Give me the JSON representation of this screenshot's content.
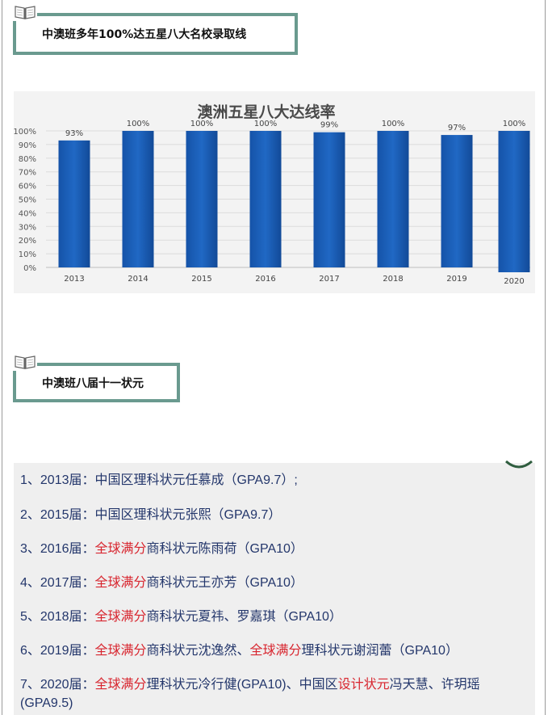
{
  "section1": {
    "title": "中澳班多年100%达五星八大名校录取线"
  },
  "chart_data": {
    "type": "bar",
    "title": "澳洲五星八大达线率",
    "categories": [
      "2013",
      "2014",
      "2015",
      "2016",
      "2017",
      "2018",
      "2019",
      "2020"
    ],
    "values": [
      93,
      100,
      100,
      100,
      99,
      100,
      97,
      100
    ],
    "value_labels": [
      "93%",
      "100%",
      "100%",
      "100%",
      "99%",
      "100%",
      "97%",
      "100%"
    ],
    "y_ticks": [
      "0%",
      "10%",
      "20%",
      "30%",
      "40%",
      "50%",
      "60%",
      "70%",
      "80%",
      "90%",
      "100%"
    ],
    "ylim": [
      0,
      100
    ],
    "grid": true,
    "bar_color": "#1a5fb4"
  },
  "section2": {
    "title": "中澳班八届十一状元"
  },
  "list": [
    {
      "segments": [
        {
          "text": "1、2013届：中国区理科状元任慕成（GPA9.7）;",
          "hl": false
        }
      ]
    },
    {
      "segments": [
        {
          "text": "2、2015届：中国区理科状元张熙（GPA9.7）",
          "hl": false
        }
      ]
    },
    {
      "segments": [
        {
          "text": "3、2016届：",
          "hl": false
        },
        {
          "text": "全球满分",
          "hl": true
        },
        {
          "text": "商科状元陈雨荷（GPA10）",
          "hl": false
        }
      ]
    },
    {
      "segments": [
        {
          "text": "4、2017届：",
          "hl": false
        },
        {
          "text": "全球满分",
          "hl": true
        },
        {
          "text": "商科状元王亦芳（GPA10）",
          "hl": false
        }
      ]
    },
    {
      "segments": [
        {
          "text": "5、2018届：",
          "hl": false
        },
        {
          "text": "全球满分",
          "hl": true
        },
        {
          "text": "商科状元夏祎、罗嘉琪（GPA10）",
          "hl": false
        }
      ]
    },
    {
      "segments": [
        {
          "text": "6、2019届：",
          "hl": false
        },
        {
          "text": "全球满分",
          "hl": true
        },
        {
          "text": "商科状元沈逸然、",
          "hl": false
        },
        {
          "text": "全球满分",
          "hl": true
        },
        {
          "text": "理科状元谢润蕾（GPA10）",
          "hl": false
        }
      ]
    },
    {
      "segments": [
        {
          "text": "7、2020届：",
          "hl": false
        },
        {
          "text": "全球满分",
          "hl": true
        },
        {
          "text": "理科状元冷行健(GPA10)、中国区",
          "hl": false
        },
        {
          "text": "设计状元",
          "hl": true
        },
        {
          "text": "冯天慧、许玥瑶 (GPA9.5)",
          "hl": false
        }
      ]
    }
  ],
  "colors": {
    "accent_border": "#6a9a8f",
    "highlight": "#d8262f",
    "list_text": "#23366b"
  }
}
